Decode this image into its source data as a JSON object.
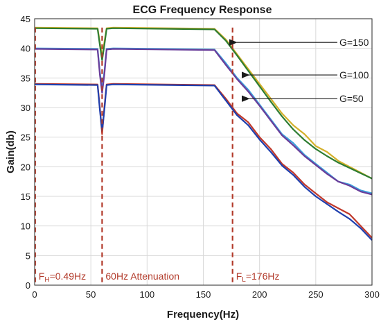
{
  "chart_data": {
    "type": "line",
    "title": "ECG Frequency Response",
    "xlabel": "Frequency(Hz)",
    "ylabel": "Gain(db)",
    "xlim": [
      0,
      300
    ],
    "ylim": [
      0,
      45
    ],
    "xticks": [
      0,
      50,
      100,
      150,
      200,
      250,
      300
    ],
    "yticks": [
      0,
      5,
      10,
      15,
      20,
      25,
      30,
      35,
      40,
      45
    ],
    "grid": true,
    "series": [
      {
        "color": "#d4b02a",
        "x": [
          0,
          56,
          58,
          60,
          62,
          64,
          70,
          160,
          170,
          180,
          190,
          200,
          210,
          220,
          230,
          240,
          250,
          260,
          270,
          280,
          290,
          300
        ],
        "y": [
          43.5,
          43.4,
          41,
          38.5,
          41,
          43.4,
          43.5,
          43.3,
          41.5,
          39,
          36.5,
          34,
          31.5,
          29,
          27,
          25.5,
          23.5,
          22.5,
          21,
          20,
          19,
          18
        ]
      },
      {
        "color": "#2e7d32",
        "x": [
          0,
          56,
          58,
          60,
          62,
          64,
          70,
          160,
          170,
          180,
          190,
          200,
          210,
          220,
          230,
          240,
          250,
          260,
          270,
          280,
          290,
          300
        ],
        "y": [
          43.4,
          43.3,
          40.5,
          38,
          40.5,
          43.3,
          43.4,
          43.2,
          41.3,
          38.8,
          36.2,
          33.6,
          31,
          28.5,
          26.3,
          24.5,
          23,
          21.8,
          20.7,
          19.8,
          18.9,
          18
        ]
      },
      {
        "color": "#3aa0dc",
        "x": [
          0,
          56,
          58,
          60,
          62,
          64,
          70,
          160,
          170,
          180,
          190,
          200,
          210,
          220,
          230,
          240,
          250,
          260,
          270,
          280,
          290,
          300
        ],
        "y": [
          40,
          39.9,
          36,
          33,
          36,
          39.9,
          40,
          39.8,
          37.5,
          35,
          33,
          30.5,
          28,
          25.5,
          24,
          22,
          20.5,
          19,
          17.5,
          17,
          16,
          15.5
        ]
      },
      {
        "color": "#6a3d9a",
        "x": [
          0,
          56,
          58,
          60,
          62,
          64,
          70,
          160,
          170,
          180,
          190,
          200,
          210,
          220,
          230,
          240,
          250,
          260,
          270,
          280,
          290,
          300
        ],
        "y": [
          39.9,
          39.8,
          35.5,
          32.5,
          35.5,
          39.8,
          39.9,
          39.7,
          37.2,
          34.8,
          32.7,
          30.3,
          27.8,
          25.3,
          23.6,
          21.8,
          20.3,
          18.8,
          17.5,
          16.8,
          15.8,
          15.3
        ]
      },
      {
        "color": "#c0392b",
        "x": [
          0,
          56,
          58,
          60,
          62,
          64,
          70,
          160,
          170,
          180,
          190,
          200,
          210,
          220,
          230,
          240,
          250,
          260,
          270,
          280,
          290,
          300
        ],
        "y": [
          34,
          33.9,
          30,
          25.5,
          30,
          33.9,
          34,
          33.8,
          31.5,
          29,
          27.5,
          25,
          23,
          20.5,
          19,
          17,
          15.5,
          14,
          13,
          12,
          10,
          8
        ]
      },
      {
        "color": "#1f3fae",
        "x": [
          0,
          56,
          58,
          60,
          62,
          64,
          70,
          160,
          170,
          180,
          190,
          200,
          210,
          220,
          230,
          240,
          250,
          260,
          270,
          280,
          290,
          300
        ],
        "y": [
          33.9,
          33.8,
          29.5,
          26,
          29.5,
          33.8,
          33.9,
          33.7,
          31.2,
          28.7,
          27,
          24.6,
          22.5,
          20.2,
          18.6,
          16.6,
          15,
          13.7,
          12.4,
          11.2,
          9.6,
          7.6
        ]
      }
    ],
    "cutoff_lines": [
      {
        "x": 0.49,
        "label": "F",
        "sub": "H",
        "rest": "=0.49Hz"
      },
      {
        "x": 60,
        "label": "60Hz Attenuation",
        "sub": "",
        "rest": ""
      },
      {
        "x": 176,
        "label": "F",
        "sub": "L",
        "rest": "=176Hz"
      }
    ],
    "annotations": [
      {
        "text": "G=150",
        "arrow_to": [
          176,
          41
        ]
      },
      {
        "text": "G=100",
        "arrow_to": [
          187,
          35.5
        ]
      },
      {
        "text": "G=50",
        "arrow_to": [
          187,
          31.5
        ]
      }
    ],
    "colors": {
      "cutoff": "#b23a2a",
      "grid": "#d9d9d9",
      "axis": "#262626"
    }
  }
}
